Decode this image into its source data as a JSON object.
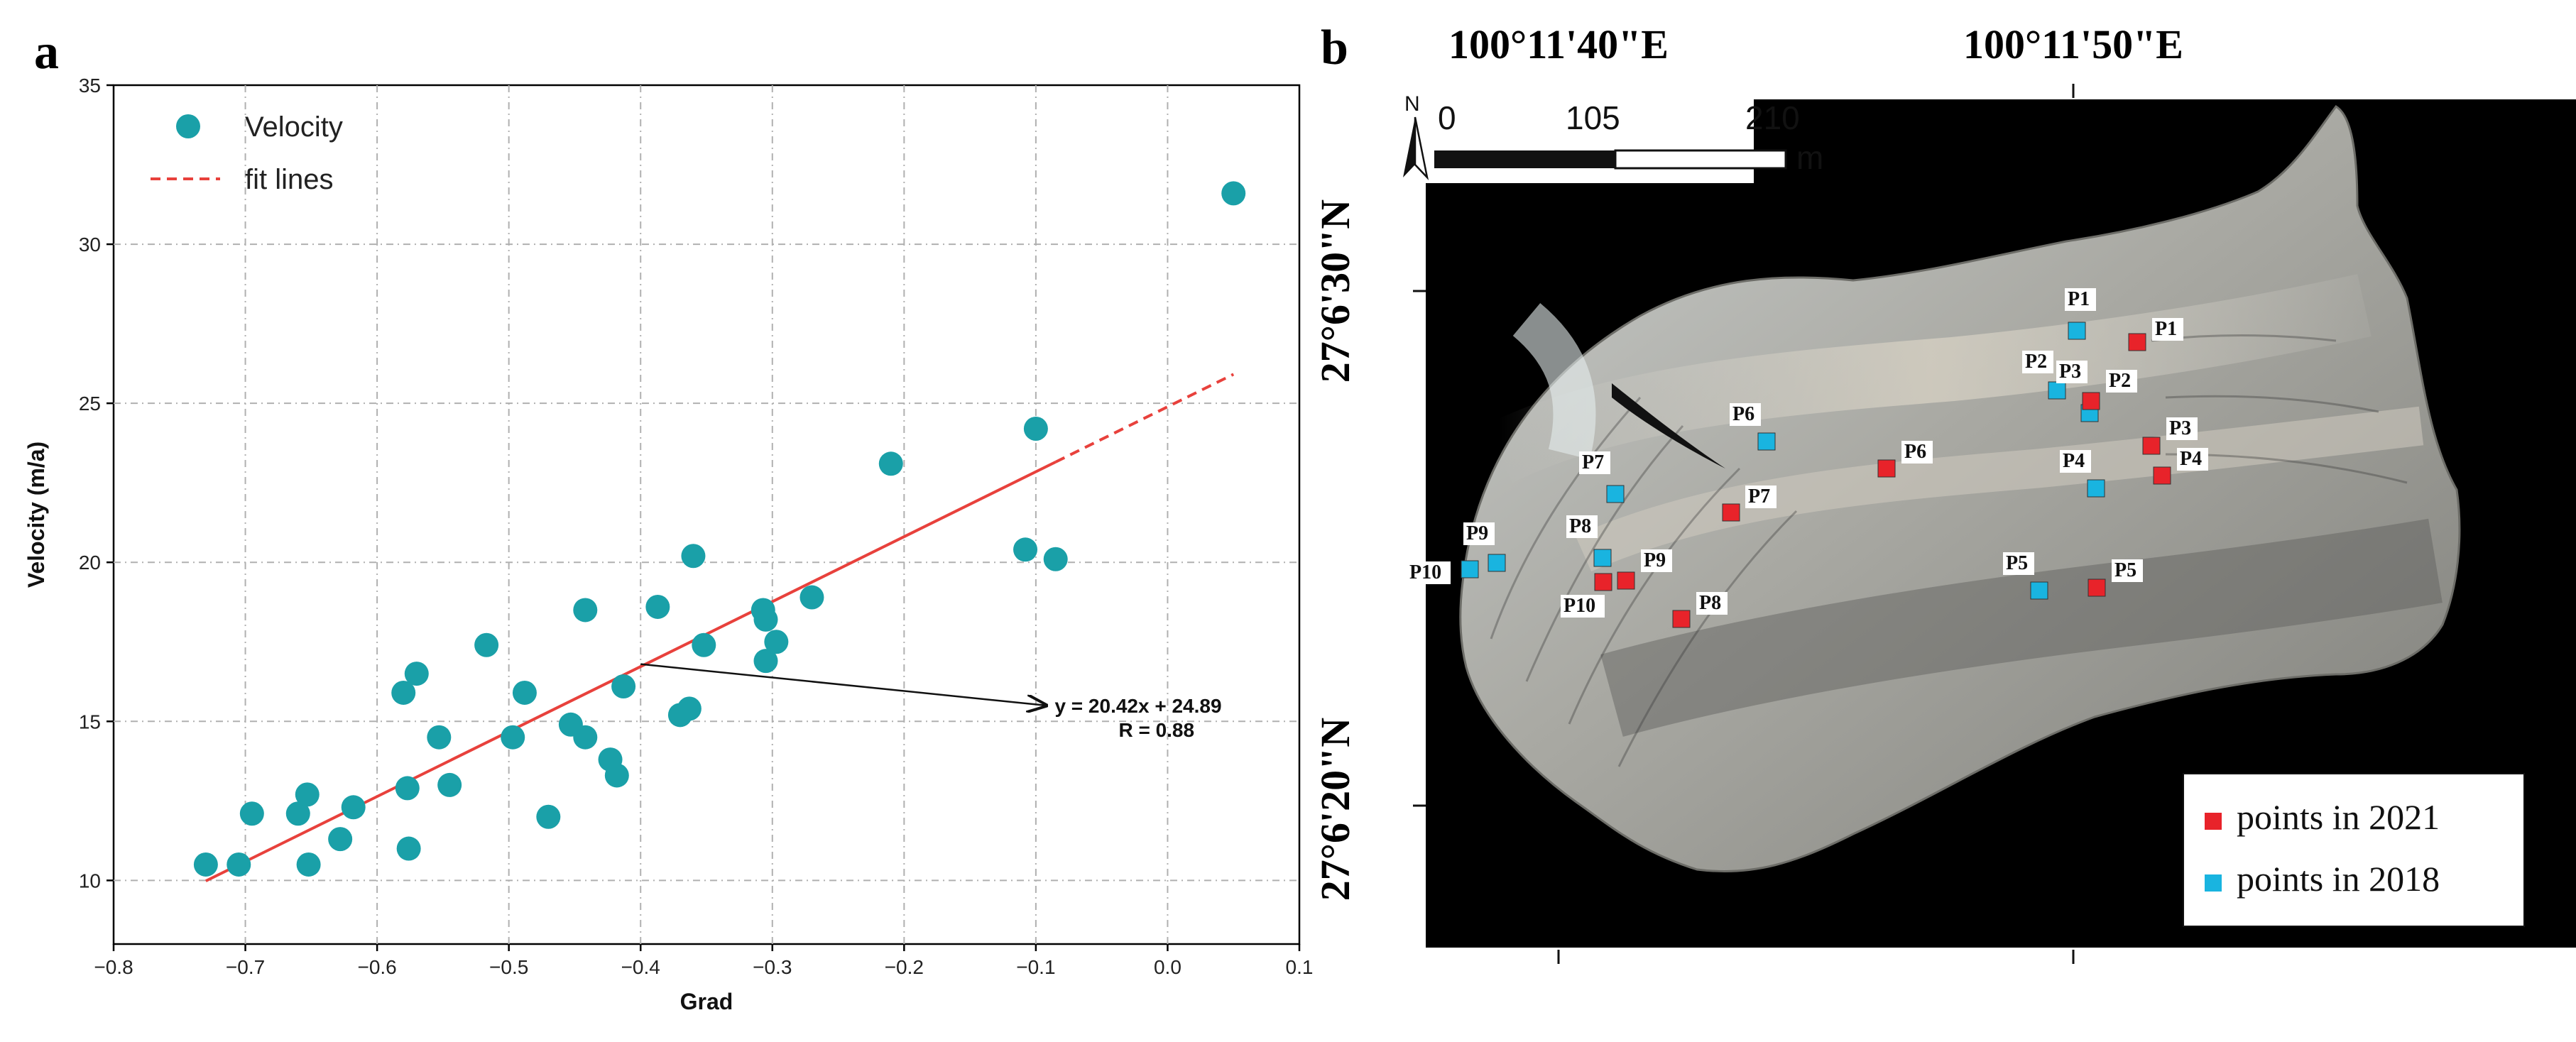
{
  "chart_data": [
    {
      "panel": "a",
      "type": "scatter",
      "xlabel": "Grad",
      "ylabel": "Velocity (m/a)",
      "xlim": [
        -0.8,
        0.1
      ],
      "ylim": [
        8,
        35
      ],
      "xticks": [
        -0.8,
        -0.7,
        -0.6,
        -0.5,
        -0.4,
        -0.3,
        -0.2,
        -0.1,
        0.0,
        0.1
      ],
      "xtick_labels": [
        "−0.8",
        "−0.7",
        "−0.6",
        "−0.5",
        "−0.4",
        "−0.3",
        "−0.2",
        "−0.1",
        "0.0",
        "0.1"
      ],
      "yticks": [
        10,
        15,
        20,
        25,
        30,
        35
      ],
      "ytick_labels": [
        "10",
        "15",
        "20",
        "25",
        "30",
        "35"
      ],
      "grid": true,
      "legend_position": "top-left",
      "series": [
        {
          "name": "Velocity",
          "kind": "scatter",
          "color": "#1aa0a8",
          "points": [
            [
              -0.73,
              10.5
            ],
            [
              -0.705,
              10.5
            ],
            [
              -0.695,
              12.1
            ],
            [
              -0.66,
              12.1
            ],
            [
              -0.653,
              12.7
            ],
            [
              -0.652,
              10.5
            ],
            [
              -0.628,
              11.3
            ],
            [
              -0.618,
              12.3
            ],
            [
              -0.58,
              15.9
            ],
            [
              -0.577,
              12.9
            ],
            [
              -0.576,
              11.0
            ],
            [
              -0.57,
              16.5
            ],
            [
              -0.553,
              14.5
            ],
            [
              -0.545,
              13.0
            ],
            [
              -0.517,
              17.4
            ],
            [
              -0.497,
              14.5
            ],
            [
              -0.488,
              15.9
            ],
            [
              -0.47,
              12.0
            ],
            [
              -0.453,
              14.9
            ],
            [
              -0.442,
              18.5
            ],
            [
              -0.442,
              14.5
            ],
            [
              -0.423,
              13.8
            ],
            [
              -0.418,
              13.3
            ],
            [
              -0.413,
              16.1
            ],
            [
              -0.387,
              18.6
            ],
            [
              -0.37,
              15.2
            ],
            [
              -0.363,
              15.4
            ],
            [
              -0.36,
              20.2
            ],
            [
              -0.352,
              17.4
            ],
            [
              -0.307,
              18.5
            ],
            [
              -0.305,
              18.2
            ],
            [
              -0.305,
              16.9
            ],
            [
              -0.297,
              17.5
            ],
            [
              -0.27,
              18.9
            ],
            [
              -0.21,
              23.1
            ],
            [
              -0.108,
              20.4
            ],
            [
              -0.1,
              24.2
            ],
            [
              -0.085,
              20.1
            ],
            [
              0.05,
              31.6
            ]
          ]
        },
        {
          "name": "fit lines",
          "kind": "line",
          "color": "#e8413c",
          "slope": 20.42,
          "intercept": 24.89,
          "x_range": [
            -0.73,
            0.05
          ],
          "solid_until_x": -0.085
        }
      ],
      "annotation": {
        "text_line1": "y = 20.42x + 24.89",
        "text_line2": "R = 0.88",
        "arrow_from": [
          -0.4,
          16.8
        ],
        "arrow_to": [
          -0.09,
          15.5
        ],
        "text_anchor_x": -0.09,
        "text_anchor_y": 15.5
      }
    },
    {
      "panel": "b",
      "type": "map",
      "top_axis_labels": [
        "100°11'40\"E",
        "100°11'50\"E"
      ],
      "left_axis_labels": [
        "27°6'30\"N",
        "27°6'20\"N"
      ],
      "scale_bar": {
        "labels": [
          "0",
          "105",
          "210"
        ],
        "unit": "m"
      },
      "north_label": "N",
      "legend": [
        {
          "label": "points in 2021",
          "color": "#e8232a"
        },
        {
          "label": "points in 2018",
          "color": "#19b4e0"
        }
      ],
      "points_2021": [
        "P1",
        "P2",
        "P3",
        "P4",
        "P5",
        "P6",
        "P7",
        "P8",
        "P9",
        "P10"
      ],
      "points_2018": [
        "P1",
        "P2",
        "P3",
        "P4",
        "P5",
        "P6",
        "P7",
        "P8",
        "P9",
        "P10"
      ]
    }
  ],
  "labels": {
    "panel_a": "a",
    "panel_b": "b"
  },
  "colors": {
    "scatter": "#1aa0a8",
    "fit": "#e8413c",
    "red_point": "#e8232a",
    "blue_point": "#19b4e0"
  }
}
